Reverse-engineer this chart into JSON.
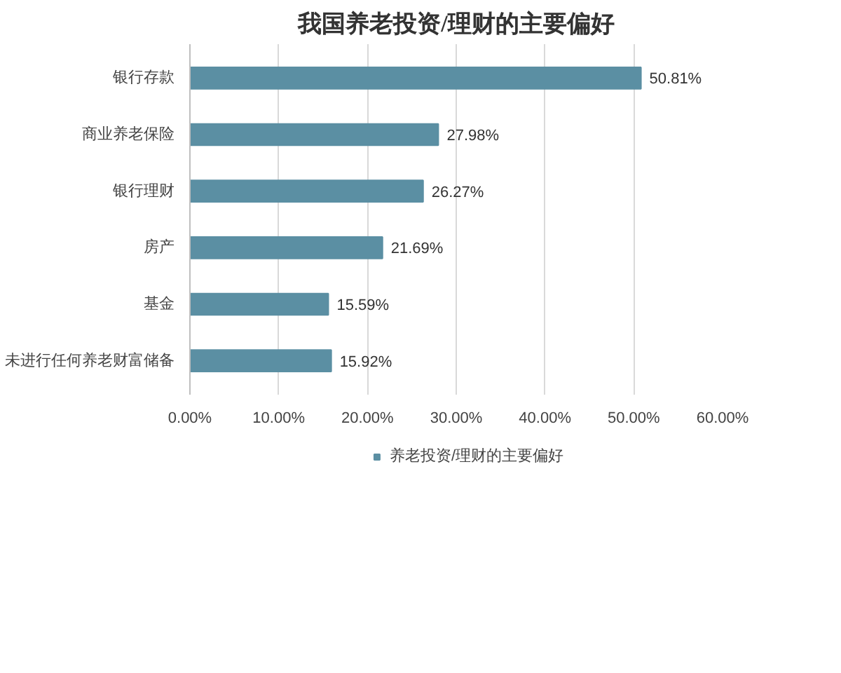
{
  "chart_data": {
    "type": "bar",
    "orientation": "horizontal",
    "title": "我国养老投资/理财的主要偏好",
    "categories": [
      "银行存款",
      "商业养老保险",
      "银行理财",
      "房产",
      "基金",
      "未进行任何养老财富储备"
    ],
    "series": [
      {
        "name": "养老投资/理财的主要偏好",
        "color": "#5b8fa3",
        "values": [
          50.81,
          27.98,
          26.27,
          21.69,
          15.59,
          15.92
        ],
        "value_labels": [
          "50.81%",
          "27.98%",
          "26.27%",
          "21.69%",
          "15.59%",
          "15.92%"
        ]
      }
    ],
    "xlim": [
      0,
      60
    ],
    "xticks": [
      {
        "value": 0,
        "label": "0.00%"
      },
      {
        "value": 10,
        "label": "10.00%"
      },
      {
        "value": 20,
        "label": "20.00%"
      },
      {
        "value": 30,
        "label": "30.00%"
      },
      {
        "value": 40,
        "label": "40.00%"
      },
      {
        "value": 50,
        "label": "50.00%"
      },
      {
        "value": 60,
        "label": "60.00%"
      }
    ],
    "grid": "x",
    "legend": "bottom"
  }
}
